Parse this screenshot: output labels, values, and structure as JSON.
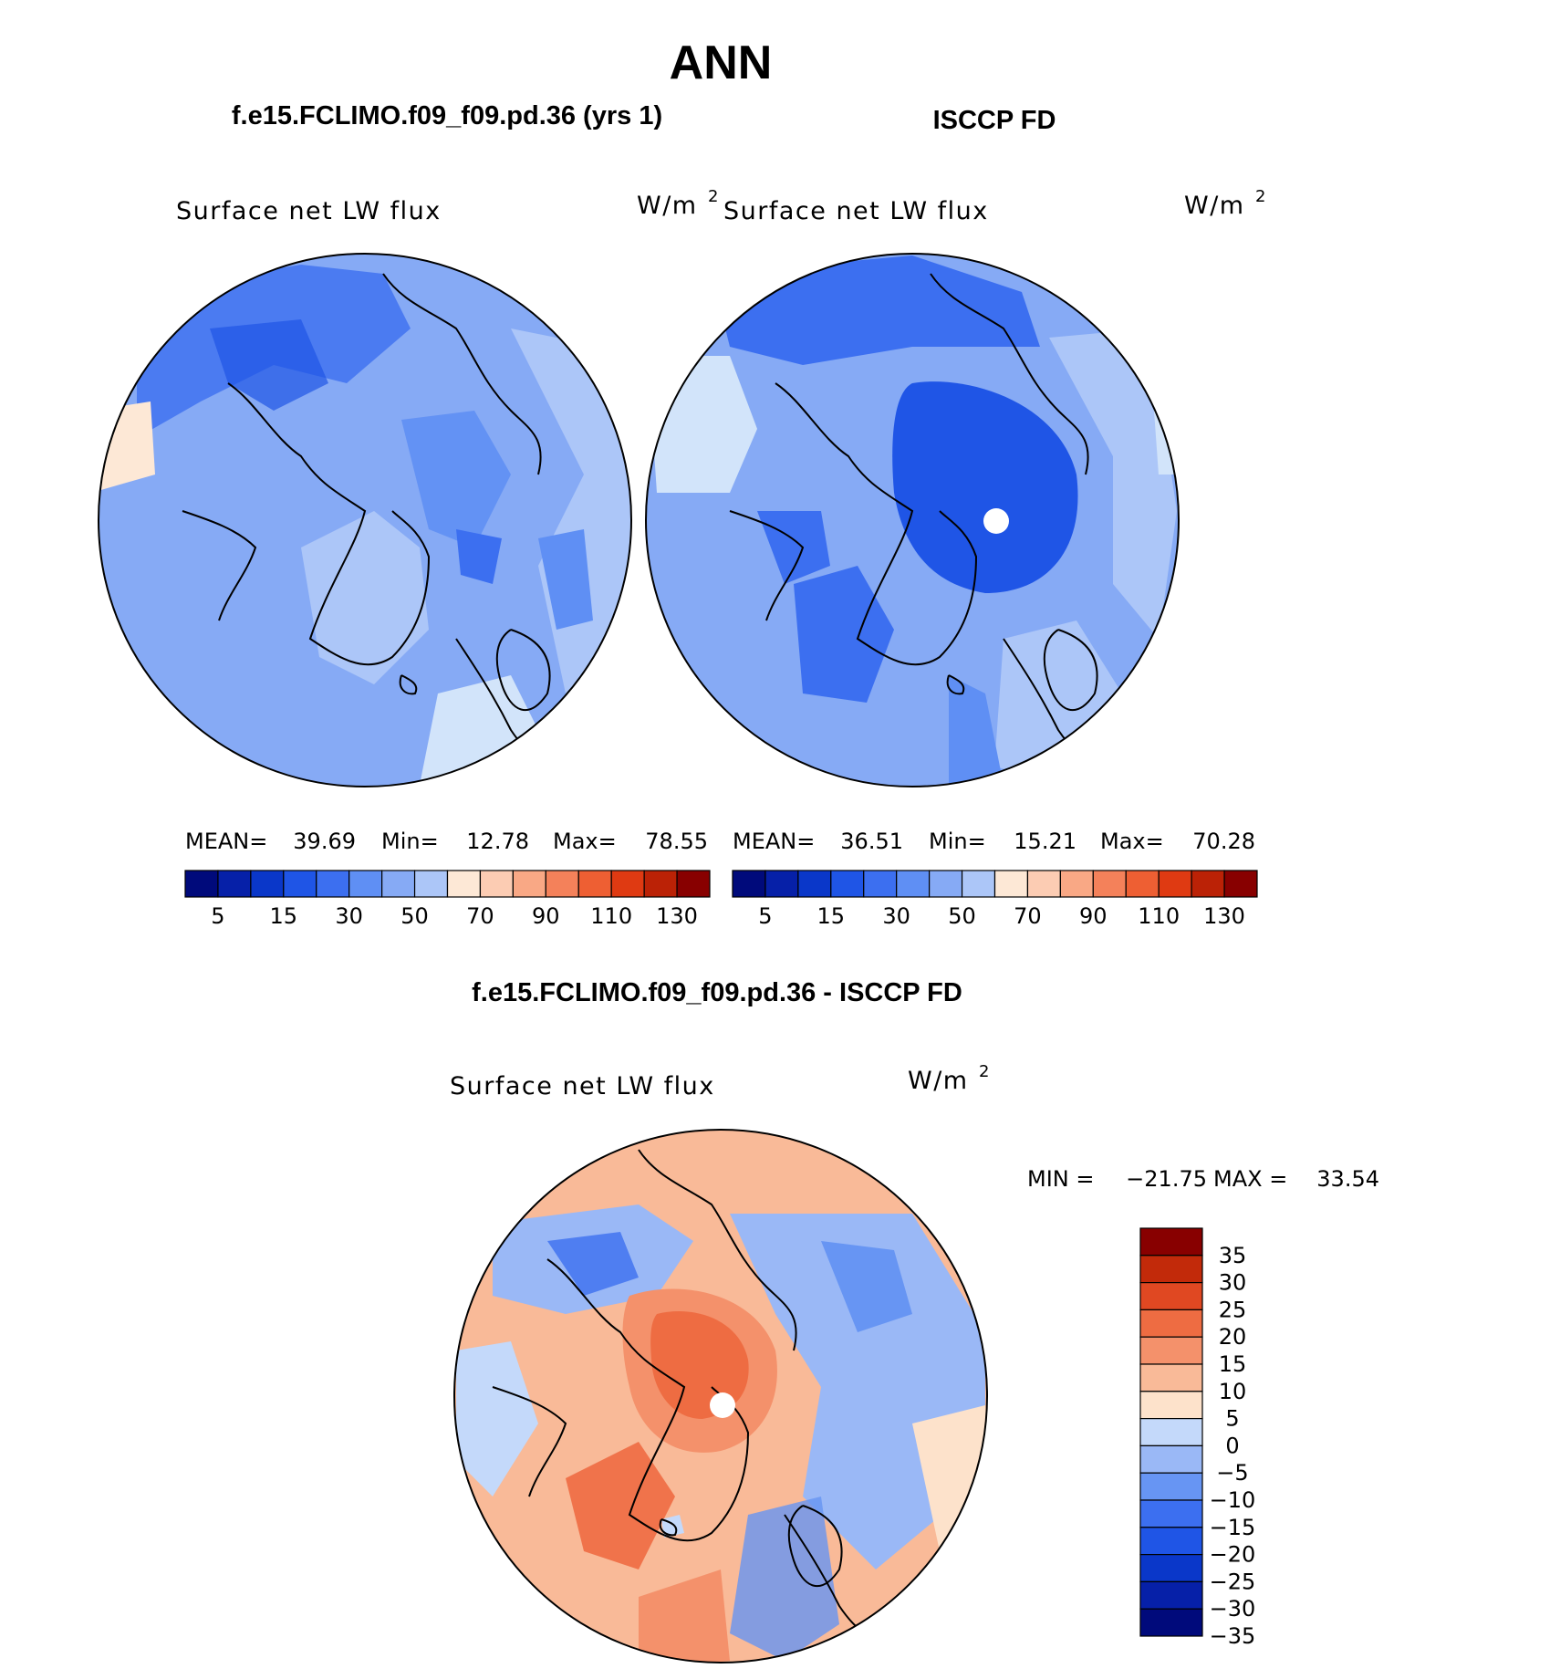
{
  "title": "ANN",
  "colors": {
    "seq": [
      "#000a7b",
      "#0620a8",
      "#0a37c9",
      "#1f55e6",
      "#3c6ff0",
      "#5f8ff4",
      "#86aaf5",
      "#acc6f8",
      "#d2e4fa",
      "#fde8d6",
      "#fcccb3",
      "#f9a885",
      "#f4815a",
      "#ee5f33",
      "#df3a12",
      "#bb2206",
      "#880000"
    ],
    "diff": [
      "#000a7b",
      "#0620a8",
      "#0a37c9",
      "#1f55e6",
      "#3c6ff0",
      "#6795f3",
      "#9ab8f6",
      "#c4d9fa",
      "#fde2cb",
      "#f9ba98",
      "#f4916b",
      "#ee6c42",
      "#e04822",
      "#c22a0a",
      "#880000"
    ]
  },
  "chart_data": [
    {
      "type": "heatmap",
      "projection": "north-polar-stereographic",
      "case_title": "f.e15.FCLIMO.f09_f09.pd.36 (yrs 1)",
      "variable": "Surface net LW flux",
      "units_base": "W/m",
      "units_exp": "2",
      "stats": {
        "mean_label": "MEAN=",
        "mean": "39.69",
        "min_label": "Min=",
        "min": "12.78",
        "max_label": "Max=",
        "max": "78.55"
      },
      "levels": [
        "5",
        "15",
        "30",
        "50",
        "70",
        "90",
        "110",
        "130"
      ],
      "colorbar_bins": 16,
      "missing_pole": false
    },
    {
      "type": "heatmap",
      "projection": "north-polar-stereographic",
      "case_title": "ISCCP FD",
      "variable": "Surface net LW flux",
      "units_base": "W/m",
      "units_exp": "2",
      "stats": {
        "mean_label": "MEAN=",
        "mean": "36.51",
        "min_label": "Min=",
        "min": "15.21",
        "max_label": "Max=",
        "max": "70.28"
      },
      "levels": [
        "5",
        "15",
        "30",
        "50",
        "70",
        "90",
        "110",
        "130"
      ],
      "colorbar_bins": 16,
      "missing_pole": true
    },
    {
      "type": "heatmap",
      "projection": "north-polar-stereographic",
      "case_title": "f.e15.FCLIMO.f09_f09.pd.36 - ISCCP FD",
      "variable": "Surface net LW flux",
      "units_base": "W/m",
      "units_exp": "2",
      "stats": {
        "min_label": "MIN =",
        "min": "−21.75",
        "max_label": "MAX =",
        "max": "33.54"
      },
      "levels": [
        "35",
        "30",
        "25",
        "20",
        "15",
        "10",
        "5",
        "0",
        "−5",
        "−10",
        "−15",
        "−20",
        "−25",
        "−30",
        "−35"
      ],
      "colorbar_bins": 15,
      "missing_pole": true
    }
  ]
}
